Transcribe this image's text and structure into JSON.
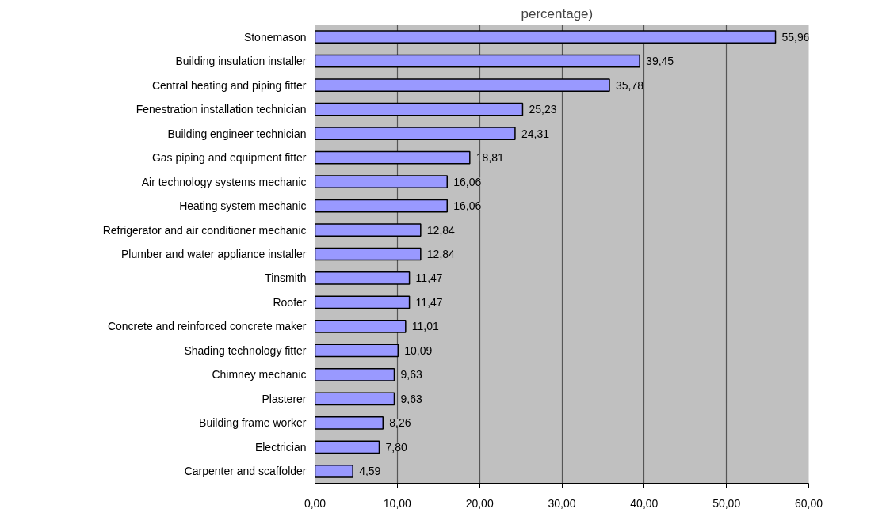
{
  "chart_data": {
    "type": "bar",
    "orientation": "horizontal",
    "title": "percentage)",
    "categories": [
      "Stonemason",
      "Building insulation installer",
      "Central heating and piping fitter",
      "Fenestration installation technician",
      "Building engineer technician",
      "Gas piping and equipment fitter",
      "Air technology systems mechanic",
      "Heating system mechanic",
      "Refrigerator and air conditioner mechanic",
      "Plumber and water appliance installer",
      "Tinsmith",
      "Roofer",
      "Concrete and reinforced concrete maker",
      "Shading technology fitter",
      "Chimney mechanic",
      "Plasterer",
      "Building frame worker",
      "Electrician",
      "Carpenter and scaffolder"
    ],
    "values": [
      55.96,
      39.45,
      35.78,
      25.23,
      24.31,
      18.81,
      16.06,
      16.06,
      12.84,
      12.84,
      11.47,
      11.47,
      11.01,
      10.09,
      9.63,
      9.63,
      8.26,
      7.8,
      4.59
    ],
    "value_labels": [
      "55,96",
      "39,45",
      "35,78",
      "25,23",
      "24,31",
      "18,81",
      "16,06",
      "16,06",
      "12,84",
      "12,84",
      "11,47",
      "11,47",
      "11,01",
      "10,09",
      "9,63",
      "9,63",
      "8,26",
      "7,80",
      "4,59"
    ],
    "color": "#9999ff",
    "xlim": [
      0,
      60
    ],
    "xticks": [
      {
        "value": 0,
        "label": "0,00"
      },
      {
        "value": 10,
        "label": "10,00"
      },
      {
        "value": 20,
        "label": "20,00"
      },
      {
        "value": 30,
        "label": "30,00"
      },
      {
        "value": 40,
        "label": "40,00"
      },
      {
        "value": 50,
        "label": "50,00"
      },
      {
        "value": 60,
        "label": "60,00"
      }
    ],
    "grid": "x"
  }
}
